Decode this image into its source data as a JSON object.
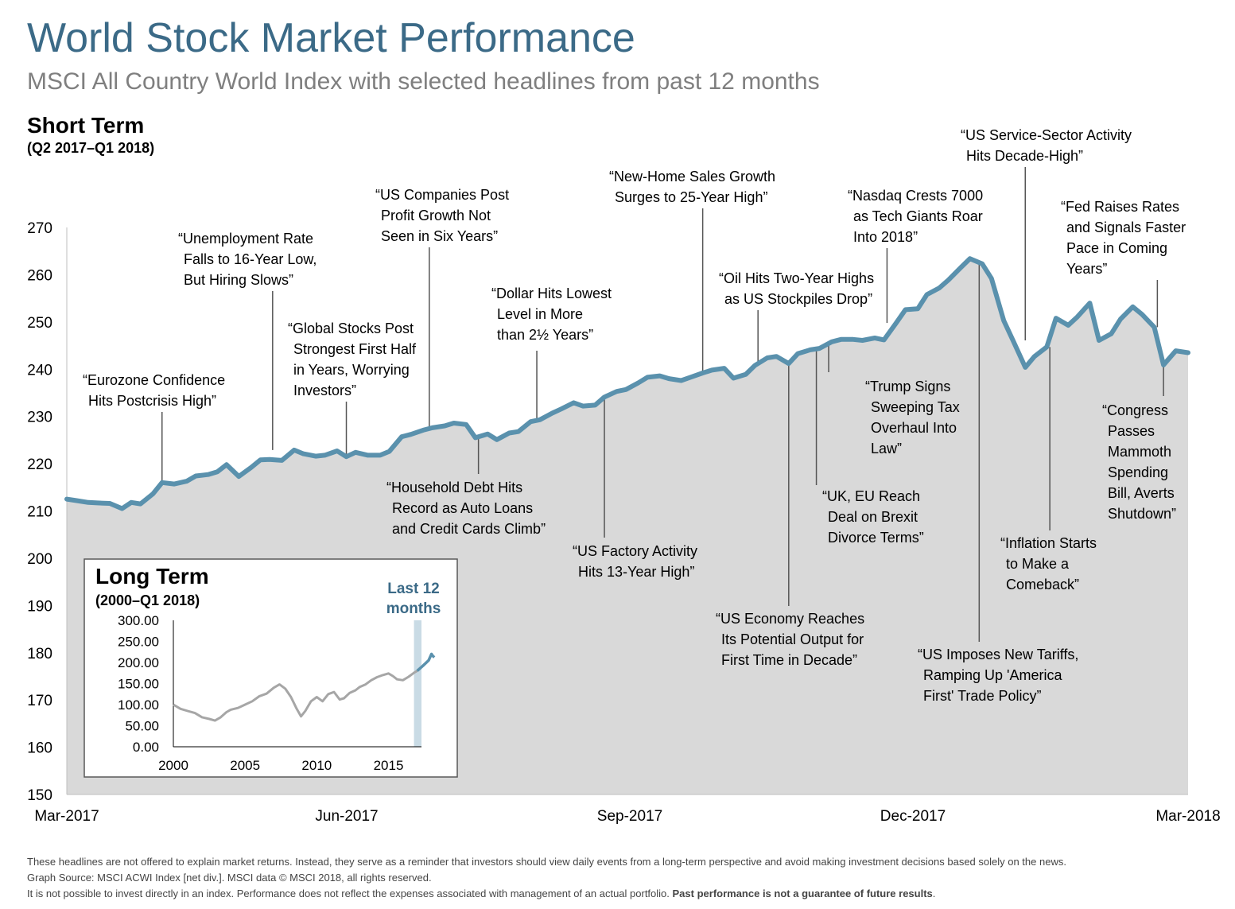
{
  "header": {
    "title": "World Stock Market Performance",
    "subtitle": "MSCI All Country World Index with selected headlines from past 12 months",
    "section_title": "Short Term",
    "section_range": "(Q2 2017–Q1 2018)"
  },
  "colors": {
    "line": "#5a91ad",
    "area": "#d9d9d9",
    "title": "#3b6a87",
    "highlight_band": "#c9dbe5"
  },
  "chart_data": [
    {
      "type": "area",
      "title": "Short Term",
      "subtitle": "(Q2 2017–Q1 2018)",
      "ylim": [
        150,
        270
      ],
      "yticks": [
        150,
        160,
        170,
        180,
        190,
        200,
        210,
        220,
        230,
        240,
        250,
        260,
        270
      ],
      "x_tick_labels": [
        "Mar-2017",
        "Jun-2017",
        "Sep-2017",
        "Dec-2017",
        "Mar-2018"
      ],
      "x": [
        "2017-03-31",
        "2017-04-03",
        "2017-04-07",
        "2017-04-10",
        "2017-04-14",
        "2017-04-18",
        "2017-04-21",
        "2017-04-24",
        "2017-04-28",
        "2017-05-01",
        "2017-05-05",
        "2017-05-09",
        "2017-05-12",
        "2017-05-16",
        "2017-05-19",
        "2017-05-22",
        "2017-05-26",
        "2017-05-30",
        "2017-06-02",
        "2017-06-05",
        "2017-06-09",
        "2017-06-13",
        "2017-06-16",
        "2017-06-20",
        "2017-06-23",
        "2017-06-27",
        "2017-06-30",
        "2017-07-03",
        "2017-07-07",
        "2017-07-11",
        "2017-07-14",
        "2017-07-18",
        "2017-07-21",
        "2017-07-25",
        "2017-07-28",
        "2017-08-01",
        "2017-08-04",
        "2017-08-08",
        "2017-08-11",
        "2017-08-15",
        "2017-08-18",
        "2017-08-22",
        "2017-08-25",
        "2017-08-29",
        "2017-09-01",
        "2017-09-05",
        "2017-09-08",
        "2017-09-12",
        "2017-09-15",
        "2017-09-19",
        "2017-09-22",
        "2017-09-26",
        "2017-09-29",
        "2017-10-03",
        "2017-10-06",
        "2017-10-10",
        "2017-10-13",
        "2017-10-17",
        "2017-10-20",
        "2017-10-24",
        "2017-10-27",
        "2017-10-31",
        "2017-11-03",
        "2017-11-07",
        "2017-11-10",
        "2017-11-14",
        "2017-11-17",
        "2017-11-21",
        "2017-11-24",
        "2017-11-28",
        "2017-12-01",
        "2017-12-05",
        "2017-12-08",
        "2017-12-12",
        "2017-12-15",
        "2017-12-19",
        "2017-12-22",
        "2017-12-26",
        "2017-12-29",
        "2018-01-02",
        "2018-01-05",
        "2018-01-09",
        "2018-01-12",
        "2018-01-16",
        "2018-01-19",
        "2018-01-23",
        "2018-01-26",
        "2018-01-30",
        "2018-02-02",
        "2018-02-06",
        "2018-02-09",
        "2018-02-13",
        "2018-02-16",
        "2018-02-20",
        "2018-02-23",
        "2018-02-27",
        "2018-03-02",
        "2018-03-06",
        "2018-03-09",
        "2018-03-13",
        "2018-03-16",
        "2018-03-20",
        "2018-03-23",
        "2018-03-27",
        "2018-03-31"
      ],
      "values": [
        212.5,
        212.2,
        211.8,
        211.7,
        211.6,
        210.5,
        211.8,
        211.5,
        213.6,
        216.0,
        215.7,
        216.3,
        217.4,
        217.7,
        218.3,
        219.8,
        217.3,
        219.2,
        220.8,
        220.9,
        220.7,
        222.9,
        222.1,
        221.6,
        221.8,
        222.7,
        221.5,
        222.4,
        221.8,
        221.8,
        222.6,
        225.7,
        226.2,
        227.1,
        227.6,
        228.0,
        228.6,
        228.3,
        225.5,
        226.3,
        225.1,
        226.5,
        226.8,
        228.9,
        229.3,
        230.7,
        231.6,
        232.9,
        232.2,
        232.4,
        234.1,
        235.3,
        235.7,
        237.1,
        238.3,
        238.6,
        238.0,
        237.6,
        238.3,
        239.2,
        239.8,
        240.2,
        238.1,
        238.9,
        240.8,
        242.4,
        242.7,
        241.2,
        243.3,
        244.1,
        244.4,
        245.8,
        246.3,
        246.3,
        246.1,
        246.6,
        246.2,
        249.8,
        252.6,
        252.8,
        255.8,
        257.2,
        258.9,
        261.5,
        263.4,
        262.3,
        259.2,
        250.3,
        246.1,
        240.4,
        242.7,
        244.7,
        250.8,
        249.3,
        251.1,
        254.0,
        246.1,
        247.5,
        250.6,
        253.2,
        251.6,
        248.9,
        240.9,
        243.9,
        243.5
      ],
      "annotations": [
        {
          "date": "2017-05-01",
          "anchor": 216.0,
          "lines": [
            "“Eurozone Confidence",
            "Hits Postcrisis High”"
          ]
        },
        {
          "date": "2017-06-06",
          "anchor": 222.9,
          "lines": [
            "“Unemployment Rate",
            "Falls to 16-Year Low,",
            "But Hiring Slows”"
          ]
        },
        {
          "date": "2017-06-30",
          "anchor": 221.5,
          "lines": [
            "“Global Stocks Post",
            "Strongest First Half",
            "in Years, Worrying",
            "Investors”"
          ]
        },
        {
          "date": "2017-07-27",
          "anchor": 227.6,
          "lines": [
            "“US Companies Post",
            "Profit Growth Not",
            "Seen in Six Years”"
          ]
        },
        {
          "date": "2017-08-12",
          "anchor": 225.7,
          "lines": [
            "“Household Debt Hits",
            "Record as Auto Loans",
            "and Credit Cards Climb”"
          ]
        },
        {
          "date": "2017-08-31",
          "anchor": 229.3,
          "lines": [
            "“Dollar Hits Lowest",
            "Level in More",
            "than 2½ Years”"
          ]
        },
        {
          "date": "2017-09-22",
          "anchor": 234.1,
          "lines": [
            "“US Factory Activity",
            "Hits 13-Year High”"
          ]
        },
        {
          "date": "2017-10-24",
          "anchor": 239.2,
          "lines": [
            "“New-Home Sales Growth",
            "Surges to 25-Year High”"
          ]
        },
        {
          "date": "2017-11-11",
          "anchor": 241.0,
          "lines": [
            "“Oil Hits Two-Year Highs",
            "as US Stockpiles Drop”"
          ]
        },
        {
          "date": "2017-11-21",
          "anchor": 241.2,
          "lines": [
            "“US Economy Reaches",
            "Its Potential Output for",
            "First Time in Decade”"
          ]
        },
        {
          "date": "2017-11-30",
          "anchor": 244.4,
          "lines": [
            "“UK, EU Reach",
            "Deal on Brexit",
            "Divorce Terms”"
          ]
        },
        {
          "date": "2017-12-04",
          "anchor": 245.8,
          "lines": [
            "“Trump Signs",
            "Sweeping Tax",
            "Overhaul Into",
            "Law”"
          ]
        },
        {
          "date": "2017-12-23",
          "anchor": 249.8,
          "lines": [
            "“Nasdaq Crests 7000",
            "as Tech Giants Roar",
            "Into 2018”"
          ]
        },
        {
          "date": "2018-01-22",
          "anchor": 262.3,
          "lines": [
            "“US Imposes New Tariffs,",
            "Ramping Up 'America",
            "First' Trade Policy”"
          ]
        },
        {
          "date": "2018-02-06",
          "anchor": 246.1,
          "lines": [
            "“US Service-Sector Activity",
            "Hits Decade-High”"
          ]
        },
        {
          "date": "2018-02-14",
          "anchor": 244.7,
          "lines": [
            "“Inflation Starts",
            "to Make a",
            "Comeback”"
          ]
        },
        {
          "date": "2018-03-21",
          "anchor": 248.9,
          "lines": [
            "“Fed Raises Rates",
            "and Signals Faster",
            "Pace in Coming",
            "Years”"
          ]
        },
        {
          "date": "2018-03-23",
          "anchor": 240.9,
          "lines": [
            "“Congress",
            "Passes",
            "Mammoth",
            "Spending",
            "Bill, Averts",
            "Shutdown”"
          ]
        }
      ]
    },
    {
      "type": "line",
      "title": "Long Term",
      "subtitle": "(2000–Q1 2018)",
      "ylim": [
        0,
        300
      ],
      "ytick_labels": [
        "300.00",
        "250.00",
        "200.00",
        "150.00",
        "100.00",
        "50.00",
        "0.00"
      ],
      "xtick_labels": [
        "2000",
        "2005",
        "2010",
        "2015"
      ],
      "highlight_label": [
        "Last 12",
        "months"
      ],
      "highlight_range": [
        2017.0,
        2018.2
      ],
      "x": [
        2000.0,
        2000.5,
        2001.0,
        2001.5,
        2002.0,
        2002.5,
        2002.9,
        2003.3,
        2003.7,
        2004.0,
        2004.5,
        2005.0,
        2005.5,
        2006.0,
        2006.5,
        2007.0,
        2007.4,
        2007.8,
        2008.2,
        2008.6,
        2008.9,
        2009.2,
        2009.6,
        2010.0,
        2010.4,
        2010.8,
        2011.2,
        2011.6,
        2011.9,
        2012.3,
        2012.7,
        2013.0,
        2013.4,
        2013.8,
        2014.2,
        2014.6,
        2015.0,
        2015.3,
        2015.6,
        2016.0,
        2016.4,
        2016.8,
        2017.0,
        2017.4,
        2017.8,
        2018.0,
        2018.1,
        2018.2
      ],
      "values": [
        100,
        90,
        85,
        80,
        70,
        66,
        62,
        70,
        82,
        88,
        92,
        100,
        108,
        120,
        126,
        140,
        148,
        138,
        118,
        90,
        72,
        85,
        108,
        118,
        108,
        125,
        130,
        112,
        115,
        128,
        134,
        142,
        148,
        158,
        165,
        170,
        174,
        168,
        160,
        158,
        166,
        176,
        180,
        192,
        205,
        220,
        215,
        212
      ]
    }
  ],
  "footnote": {
    "line1": "These headlines are not offered to explain market returns. Instead, they serve as a reminder that investors should view daily events from a long-term perspective and avoid making investment decisions based solely on the news.",
    "line2": "Graph Source: MSCI ACWI Index [net div.]. MSCI data © MSCI 2018, all rights reserved.",
    "line3_normal": "It is not possible to invest directly in an index. Performance does not reflect the expenses associated with management of an actual portfolio. ",
    "line3_bold": "Past performance is not a guarantee of future results",
    "line3_end": "."
  }
}
